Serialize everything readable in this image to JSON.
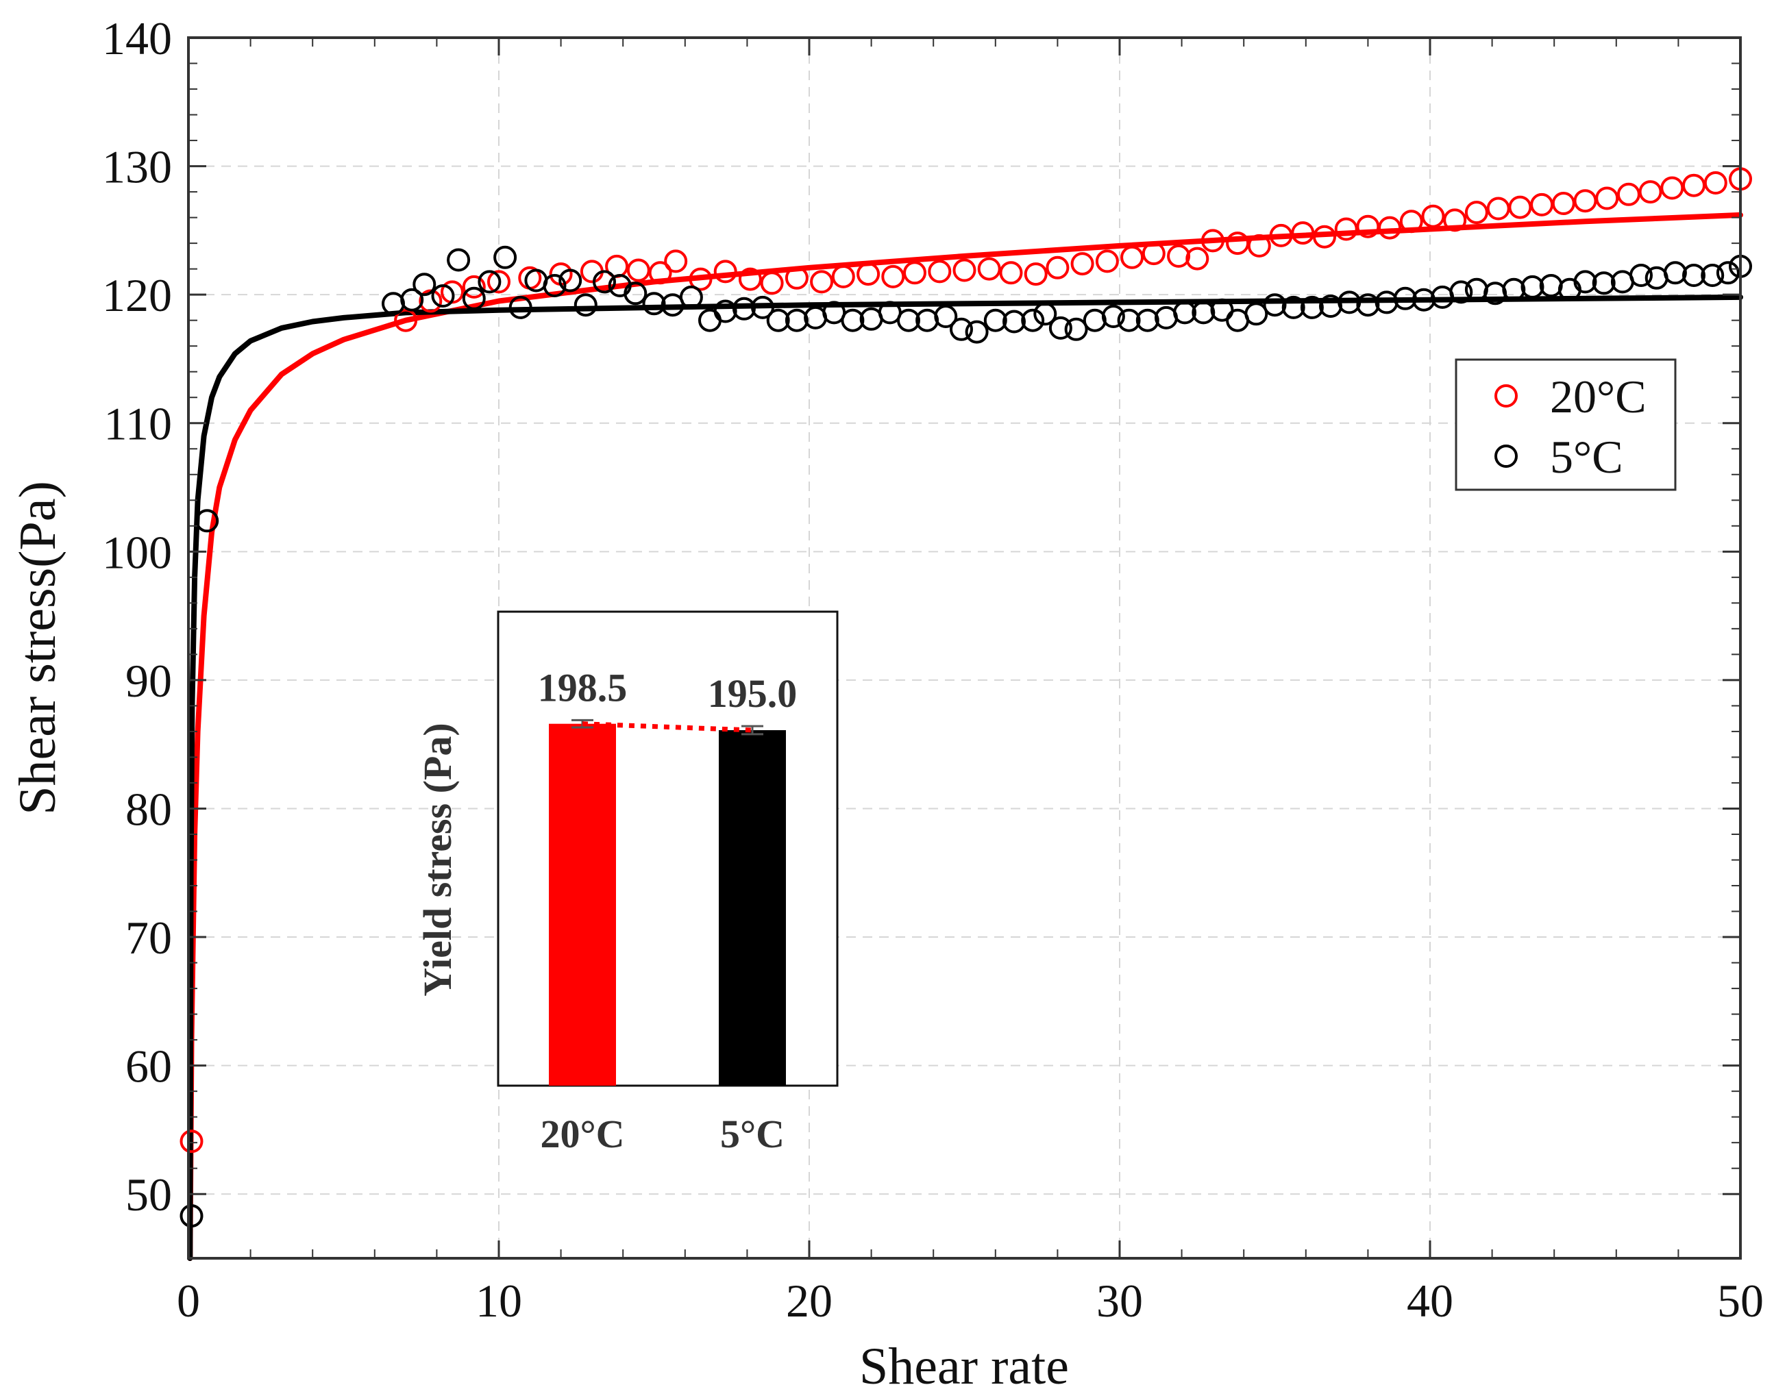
{
  "chart_data": {
    "type": "scatter",
    "xlabel": "Shear rate",
    "ylabel": "Shear stress(Pa)",
    "xlim": [
      0,
      50
    ],
    "ylim": [
      45,
      140
    ],
    "x_ticks": [
      0,
      10,
      20,
      30,
      40,
      50
    ],
    "y_ticks": [
      50,
      60,
      70,
      80,
      90,
      100,
      110,
      120,
      130,
      140
    ],
    "grid": true,
    "legend_position": "right",
    "series": [
      {
        "name": "20°C",
        "color": "#ff0000",
        "marker": "open-circle",
        "points": [
          [
            0.1,
            54.1
          ],
          [
            7.0,
            118.0
          ],
          [
            7.8,
            119.5
          ],
          [
            8.5,
            120.2
          ],
          [
            9.2,
            120.6
          ],
          [
            10.0,
            121.0
          ],
          [
            11.0,
            121.3
          ],
          [
            12.0,
            121.6
          ],
          [
            13.0,
            121.8
          ],
          [
            13.8,
            122.2
          ],
          [
            14.5,
            121.9
          ],
          [
            15.2,
            121.7
          ],
          [
            15.7,
            122.6
          ],
          [
            16.5,
            121.2
          ],
          [
            17.3,
            121.8
          ],
          [
            18.1,
            121.2
          ],
          [
            18.8,
            120.9
          ],
          [
            19.6,
            121.3
          ],
          [
            20.4,
            121.0
          ],
          [
            21.1,
            121.4
          ],
          [
            21.9,
            121.6
          ],
          [
            22.7,
            121.4
          ],
          [
            23.4,
            121.7
          ],
          [
            24.2,
            121.8
          ],
          [
            25.0,
            121.9
          ],
          [
            25.8,
            122.0
          ],
          [
            26.5,
            121.7
          ],
          [
            27.3,
            121.6
          ],
          [
            28.0,
            122.1
          ],
          [
            28.8,
            122.4
          ],
          [
            29.6,
            122.6
          ],
          [
            30.4,
            122.9
          ],
          [
            31.1,
            123.2
          ],
          [
            31.9,
            123.0
          ],
          [
            32.5,
            122.8
          ],
          [
            33.0,
            124.2
          ],
          [
            33.8,
            124.0
          ],
          [
            34.5,
            123.8
          ],
          [
            35.2,
            124.6
          ],
          [
            35.9,
            124.8
          ],
          [
            36.6,
            124.5
          ],
          [
            37.3,
            125.1
          ],
          [
            38.0,
            125.3
          ],
          [
            38.7,
            125.2
          ],
          [
            39.4,
            125.7
          ],
          [
            40.1,
            126.1
          ],
          [
            40.8,
            125.8
          ],
          [
            41.5,
            126.4
          ],
          [
            42.2,
            126.7
          ],
          [
            42.9,
            126.8
          ],
          [
            43.6,
            127.0
          ],
          [
            44.3,
            127.1
          ],
          [
            45.0,
            127.3
          ],
          [
            45.7,
            127.5
          ],
          [
            46.4,
            127.8
          ],
          [
            47.1,
            128.0
          ],
          [
            47.8,
            128.3
          ],
          [
            48.5,
            128.5
          ],
          [
            49.2,
            128.7
          ],
          [
            50.0,
            129.0
          ]
        ],
        "fit": [
          [
            0.05,
            45.0
          ],
          [
            0.1,
            62.0
          ],
          [
            0.2,
            78.0
          ],
          [
            0.3,
            86.0
          ],
          [
            0.5,
            95.0
          ],
          [
            0.75,
            101.5
          ],
          [
            1.0,
            105.0
          ],
          [
            1.5,
            108.7
          ],
          [
            2.0,
            111.0
          ],
          [
            3.0,
            113.8
          ],
          [
            4.0,
            115.4
          ],
          [
            5.0,
            116.5
          ],
          [
            7.0,
            118.0
          ],
          [
            10.0,
            119.5
          ],
          [
            15.0,
            121.0
          ],
          [
            20.0,
            122.1
          ],
          [
            25.0,
            123.0
          ],
          [
            30.0,
            123.8
          ],
          [
            35.0,
            124.5
          ],
          [
            40.0,
            125.1
          ],
          [
            45.0,
            125.7
          ],
          [
            50.0,
            126.2
          ]
        ]
      },
      {
        "name": "5°C",
        "color": "#000000",
        "marker": "open-circle",
        "points": [
          [
            0.1,
            48.3
          ],
          [
            0.6,
            102.4
          ],
          [
            6.6,
            119.3
          ],
          [
            7.2,
            119.6
          ],
          [
            7.6,
            120.8
          ],
          [
            8.2,
            119.9
          ],
          [
            8.7,
            122.7
          ],
          [
            9.2,
            119.7
          ],
          [
            9.7,
            121.0
          ],
          [
            10.2,
            122.9
          ],
          [
            10.7,
            119.0
          ],
          [
            11.2,
            121.1
          ],
          [
            11.8,
            120.7
          ],
          [
            12.3,
            121.1
          ],
          [
            12.8,
            119.2
          ],
          [
            13.4,
            121.0
          ],
          [
            13.9,
            120.7
          ],
          [
            14.4,
            120.1
          ],
          [
            15.0,
            119.3
          ],
          [
            15.6,
            119.2
          ],
          [
            16.2,
            119.8
          ],
          [
            16.8,
            118.0
          ],
          [
            17.3,
            118.7
          ],
          [
            17.9,
            118.9
          ],
          [
            18.5,
            119.0
          ],
          [
            19.0,
            118.0
          ],
          [
            19.6,
            118.0
          ],
          [
            20.2,
            118.2
          ],
          [
            20.8,
            118.6
          ],
          [
            21.4,
            118.0
          ],
          [
            22.0,
            118.1
          ],
          [
            22.6,
            118.6
          ],
          [
            23.2,
            118.0
          ],
          [
            23.8,
            118.0
          ],
          [
            24.4,
            118.3
          ],
          [
            24.9,
            117.3
          ],
          [
            25.4,
            117.1
          ],
          [
            26.0,
            118.0
          ],
          [
            26.6,
            117.9
          ],
          [
            27.2,
            118.0
          ],
          [
            27.6,
            118.5
          ],
          [
            28.1,
            117.4
          ],
          [
            28.6,
            117.3
          ],
          [
            29.2,
            118.0
          ],
          [
            29.8,
            118.3
          ],
          [
            30.3,
            118.0
          ],
          [
            30.9,
            118.0
          ],
          [
            31.5,
            118.2
          ],
          [
            32.1,
            118.6
          ],
          [
            32.7,
            118.6
          ],
          [
            33.3,
            118.8
          ],
          [
            33.8,
            118.0
          ],
          [
            34.4,
            118.5
          ],
          [
            35.0,
            119.2
          ],
          [
            35.6,
            119.0
          ],
          [
            36.2,
            119.0
          ],
          [
            36.8,
            119.1
          ],
          [
            37.4,
            119.4
          ],
          [
            38.0,
            119.2
          ],
          [
            38.6,
            119.4
          ],
          [
            39.2,
            119.7
          ],
          [
            39.8,
            119.6
          ],
          [
            40.4,
            119.8
          ],
          [
            41.0,
            120.2
          ],
          [
            41.5,
            120.4
          ],
          [
            42.1,
            120.1
          ],
          [
            42.7,
            120.4
          ],
          [
            43.3,
            120.6
          ],
          [
            43.9,
            120.7
          ],
          [
            44.5,
            120.4
          ],
          [
            45.0,
            121.0
          ],
          [
            45.6,
            120.9
          ],
          [
            46.2,
            121.0
          ],
          [
            46.8,
            121.5
          ],
          [
            47.3,
            121.3
          ],
          [
            47.9,
            121.7
          ],
          [
            48.5,
            121.5
          ],
          [
            49.1,
            121.5
          ],
          [
            49.6,
            121.7
          ],
          [
            50.0,
            122.2
          ]
        ],
        "fit": [
          [
            0.05,
            45.0
          ],
          [
            0.08,
            75.0
          ],
          [
            0.12,
            88.0
          ],
          [
            0.2,
            98.0
          ],
          [
            0.3,
            104.0
          ],
          [
            0.5,
            109.0
          ],
          [
            0.75,
            112.0
          ],
          [
            1.0,
            113.6
          ],
          [
            1.5,
            115.4
          ],
          [
            2.0,
            116.4
          ],
          [
            3.0,
            117.4
          ],
          [
            4.0,
            117.9
          ],
          [
            5.0,
            118.2
          ],
          [
            7.0,
            118.6
          ],
          [
            10.0,
            118.8
          ],
          [
            15.0,
            119.0
          ],
          [
            20.0,
            119.2
          ],
          [
            30.0,
            119.4
          ],
          [
            40.0,
            119.6
          ],
          [
            50.0,
            119.8
          ]
        ]
      }
    ],
    "inset": {
      "type": "bar",
      "ylabel": "Yield stress (Pa)",
      "categories": [
        "20°C",
        "5°C"
      ],
      "values": [
        198.5,
        195.0
      ],
      "value_labels": [
        "198.5",
        "195.0"
      ],
      "error": [
        2.0,
        2.2
      ],
      "colors": [
        "#ff0000",
        "#000000"
      ],
      "ylim": [
        0,
        260
      ]
    }
  }
}
